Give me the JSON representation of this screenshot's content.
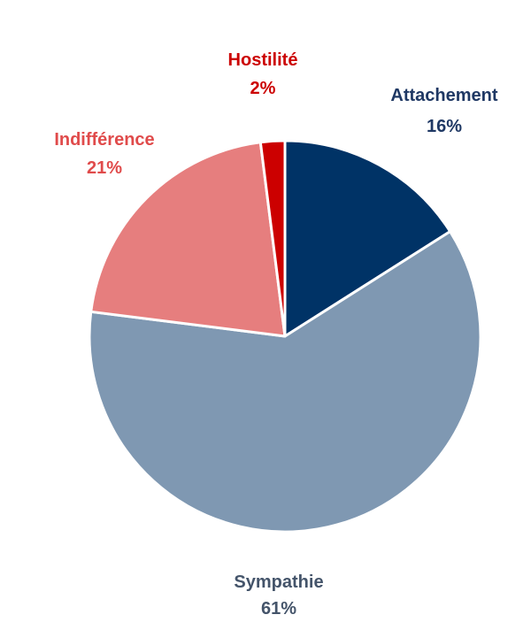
{
  "chart_data": {
    "type": "pie",
    "title": "",
    "start_angle_deg": 0,
    "direction": "clockwise",
    "slices": [
      {
        "label": "Attachement",
        "value": 16,
        "value_text": "16%",
        "color": "#003366",
        "label_color": "#1F3864"
      },
      {
        "label": "Sympathie",
        "value": 61,
        "value_text": "61%",
        "color": "#7F98B2",
        "label_color": "#44546A"
      },
      {
        "label": "Indifférence",
        "value": 21,
        "value_text": "21%",
        "color": "#E67E7E",
        "label_color": "#E04B4B"
      },
      {
        "label": "Hostilité",
        "value": 2,
        "value_text": "2%",
        "color": "#CC0000",
        "label_color": "#CC0000"
      }
    ]
  }
}
